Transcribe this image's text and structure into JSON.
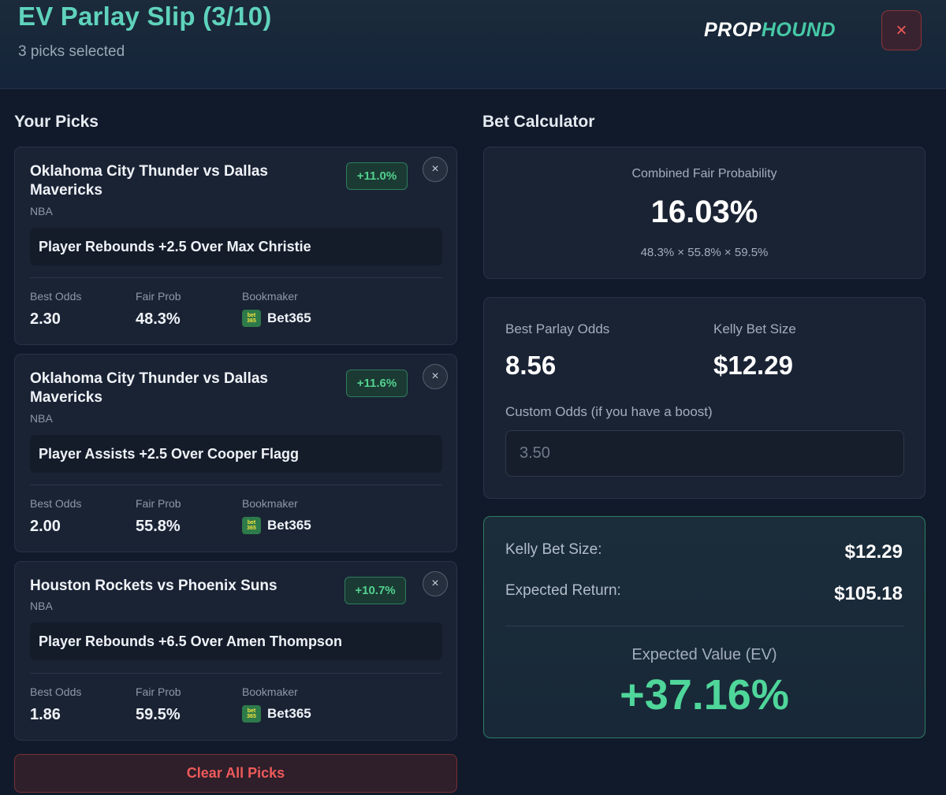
{
  "header": {
    "title": "EV Parlay Slip (3/10)",
    "subtitle": "3 picks selected",
    "logo_part1": "PROP",
    "logo_part2": "HOUND",
    "close_icon": "×"
  },
  "picks_section": {
    "title": "Your Picks"
  },
  "picks": [
    {
      "match": "Oklahoma City Thunder vs Dallas Mavericks",
      "league": "NBA",
      "ev": "+11.0%",
      "market": "Player Rebounds +2.5 Over Max Christie",
      "best_odds_label": "Best Odds",
      "best_odds": "2.30",
      "fair_prob_label": "Fair Prob",
      "fair_prob": "48.3%",
      "bookmaker_label": "Bookmaker",
      "bookmaker": "Bet365",
      "bookmaker_logo": "bet 365"
    },
    {
      "match": "Oklahoma City Thunder vs Dallas Mavericks",
      "league": "NBA",
      "ev": "+11.6%",
      "market": "Player Assists +2.5 Over Cooper Flagg",
      "best_odds_label": "Best Odds",
      "best_odds": "2.00",
      "fair_prob_label": "Fair Prob",
      "fair_prob": "55.8%",
      "bookmaker_label": "Bookmaker",
      "bookmaker": "Bet365",
      "bookmaker_logo": "bet 365"
    },
    {
      "match": "Houston Rockets vs Phoenix Suns",
      "league": "NBA",
      "ev": "+10.7%",
      "market": "Player Rebounds +6.5 Over Amen Thompson",
      "best_odds_label": "Best Odds",
      "best_odds": "1.86",
      "fair_prob_label": "Fair Prob",
      "fair_prob": "59.5%",
      "bookmaker_label": "Bookmaker",
      "bookmaker": "Bet365",
      "bookmaker_logo": "bet 365"
    }
  ],
  "clear_button": "Clear All Picks",
  "calculator": {
    "title": "Bet Calculator",
    "combined_label": "Combined Fair Probability",
    "combined_value": "16.03%",
    "combined_formula": "48.3% × 55.8% × 59.5%",
    "parlay_odds_label": "Best Parlay Odds",
    "parlay_odds": "8.56",
    "kelly_label": "Kelly Bet Size",
    "kelly_value": "$12.29",
    "custom_odds_label": "Custom Odds (if you have a boost)",
    "custom_odds_placeholder": "3.50"
  },
  "results": {
    "kelly_label": "Kelly Bet Size:",
    "kelly_value": "$12.29",
    "return_label": "Expected Return:",
    "return_value": "$105.18",
    "ev_label": "Expected Value (EV)",
    "ev_value": "+37.16%"
  },
  "colors": {
    "accent": "#5fd3bc",
    "positive": "#4fd69a",
    "danger": "#ef5a5a"
  }
}
